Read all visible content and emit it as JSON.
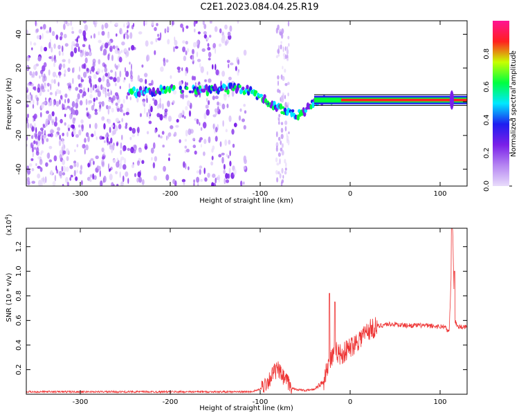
{
  "title": "C2E1.2023.084.04.25.R19",
  "chart_data": [
    {
      "type": "heatmap",
      "xlabel": "Height of straight line (km)",
      "ylabel": "Frequency (Hz)",
      "xlim": [
        -360,
        130
      ],
      "ylim": [
        -50,
        48
      ],
      "x_ticks": [
        -300,
        -200,
        -100,
        0,
        100
      ],
      "y_ticks": [
        -40,
        -20,
        0,
        20,
        40
      ],
      "colorbar": {
        "label": "Normalized spectral amplitude",
        "range": [
          0,
          1
        ],
        "ticks": [
          "0.0",
          "0.2",
          "0.4",
          "0.6",
          "0.8"
        ],
        "stops": [
          "#e8dcfb",
          "#b585f2",
          "#7a1fe8",
          "#1e1ef0",
          "#00e8ff",
          "#00ff40",
          "#c8ff00",
          "#ff2020",
          "#ff1493"
        ]
      },
      "trace": {
        "x": [
          -240,
          -220,
          -200,
          -170,
          -150,
          -130,
          -115,
          -100,
          -90,
          -80,
          -70,
          -60,
          -50,
          -40,
          -30,
          -20,
          -10,
          0,
          40,
          100,
          110,
          115,
          120,
          130
        ],
        "y": [
          6,
          6,
          7,
          7,
          7,
          8,
          7,
          3,
          0,
          -4,
          -6,
          -8,
          -6,
          0,
          1,
          1,
          2,
          2,
          1,
          1,
          0,
          1,
          1,
          1
        ]
      },
      "line_freq": 1
    },
    {
      "type": "line",
      "xlabel": "Height of straight line (km)",
      "ylabel": "SNR (10 * v/v)",
      "multiplier": "(x10",
      "multiplier_exp": "4",
      "xlim": [
        -360,
        130
      ],
      "ylim": [
        0,
        1.35
      ],
      "x_ticks": [
        -300,
        -200,
        -100,
        0,
        100
      ],
      "y_ticks": [
        0.2,
        0.4,
        0.6,
        0.8,
        1.0,
        1.2
      ],
      "y_tick_labels": [
        "0.2",
        "0.4",
        "0.6",
        "0.8",
        "1.0",
        "1.2"
      ],
      "color": "#ee3333",
      "series_envelope": {
        "x": [
          -360,
          -110,
          -100,
          -90,
          -85,
          -80,
          -75,
          -70,
          -65,
          -60,
          -50,
          -40,
          -30,
          -25,
          -20,
          -15,
          -10,
          -5,
          0,
          10,
          20,
          30,
          40,
          50,
          60,
          80,
          100,
          105,
          110,
          112,
          114,
          116,
          120,
          130
        ],
        "y": [
          0.02,
          0.02,
          0.04,
          0.12,
          0.18,
          0.2,
          0.14,
          0.1,
          0.05,
          0.04,
          0.03,
          0.04,
          0.1,
          0.25,
          0.3,
          0.35,
          0.32,
          0.35,
          0.38,
          0.45,
          0.52,
          0.55,
          0.57,
          0.57,
          0.56,
          0.56,
          0.55,
          0.55,
          0.5,
          0.9,
          1.35,
          0.6,
          0.55,
          0.55
        ]
      },
      "spikes": [
        {
          "x": -23,
          "y": 0.82
        },
        {
          "x": -17,
          "y": 0.75
        },
        {
          "x": 113,
          "y": 1.35
        },
        {
          "x": 116,
          "y": 1.0
        }
      ]
    }
  ]
}
